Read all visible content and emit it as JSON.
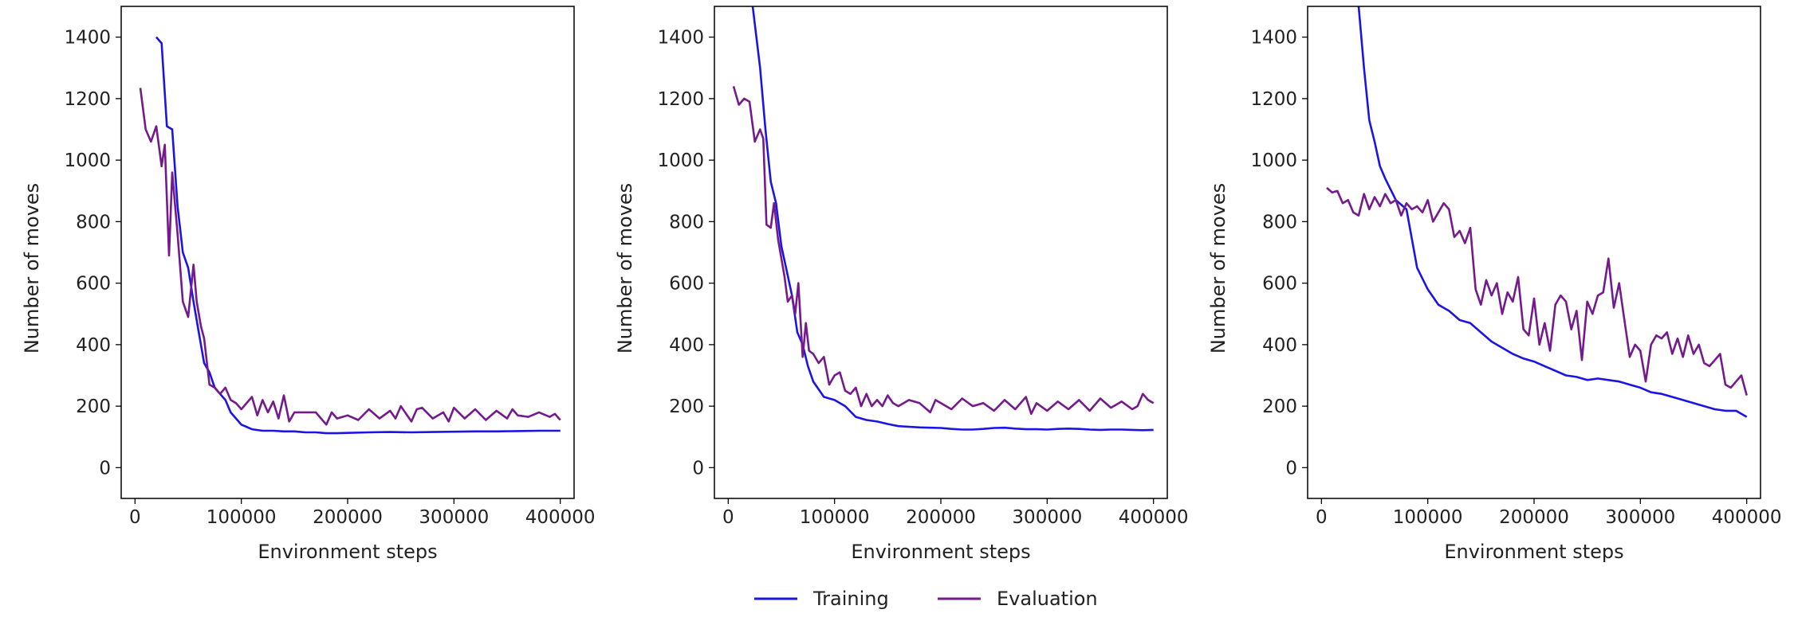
{
  "colors": {
    "training": "#1a14e6",
    "evaluation": "#741a8c"
  },
  "legend": {
    "placement": "bottom-center",
    "items": [
      {
        "label": "Training",
        "color": "#1a14e6"
      },
      {
        "label": "Evaluation",
        "color": "#741a8c"
      }
    ]
  },
  "chart_data": [
    {
      "type": "line",
      "xlabel": "Environment steps",
      "ylabel": "Number of moves",
      "xlim": [
        -13000,
        413000
      ],
      "ylim": [
        -100,
        1500
      ],
      "xticks": [
        0,
        100000,
        200000,
        300000,
        400000
      ],
      "yticks": [
        0,
        200,
        400,
        600,
        800,
        1000,
        1200,
        1400
      ],
      "grid": false,
      "series": [
        {
          "name": "Training",
          "x": [
            20000,
            25000,
            30000,
            35000,
            40000,
            45000,
            50000,
            55000,
            60000,
            65000,
            70000,
            75000,
            80000,
            85000,
            90000,
            95000,
            100000,
            110000,
            120000,
            130000,
            140000,
            150000,
            160000,
            170000,
            180000,
            190000,
            200000,
            220000,
            240000,
            260000,
            280000,
            300000,
            320000,
            340000,
            360000,
            380000,
            400000
          ],
          "y": [
            1400,
            1380,
            1110,
            1100,
            850,
            700,
            650,
            540,
            440,
            340,
            310,
            260,
            240,
            220,
            180,
            160,
            140,
            125,
            120,
            120,
            118,
            118,
            115,
            115,
            112,
            112,
            113,
            115,
            116,
            115,
            116,
            117,
            118,
            118,
            119,
            120,
            120
          ]
        },
        {
          "name": "Evaluation",
          "x": [
            5000,
            10000,
            15000,
            20000,
            25000,
            28000,
            32000,
            35000,
            40000,
            45000,
            50000,
            55000,
            58000,
            62000,
            65000,
            70000,
            75000,
            80000,
            85000,
            90000,
            95000,
            100000,
            110000,
            115000,
            120000,
            125000,
            130000,
            135000,
            140000,
            145000,
            150000,
            160000,
            170000,
            180000,
            185000,
            190000,
            200000,
            210000,
            220000,
            230000,
            240000,
            245000,
            250000,
            260000,
            265000,
            270000,
            280000,
            290000,
            295000,
            300000,
            310000,
            320000,
            330000,
            340000,
            350000,
            355000,
            360000,
            370000,
            380000,
            390000,
            395000,
            400000
          ],
          "y": [
            1235,
            1100,
            1060,
            1110,
            980,
            1050,
            690,
            960,
            760,
            540,
            490,
            660,
            540,
            460,
            420,
            270,
            260,
            240,
            260,
            220,
            210,
            190,
            230,
            170,
            220,
            180,
            215,
            160,
            235,
            150,
            180,
            180,
            180,
            140,
            180,
            160,
            170,
            155,
            190,
            160,
            185,
            160,
            200,
            150,
            190,
            195,
            160,
            180,
            150,
            195,
            160,
            190,
            155,
            185,
            160,
            190,
            170,
            165,
            180,
            165,
            175,
            155
          ]
        }
      ]
    },
    {
      "type": "line",
      "xlabel": "Environment steps",
      "ylabel": "Number of moves",
      "xlim": [
        -13000,
        413000
      ],
      "ylim": [
        -100,
        1500
      ],
      "xticks": [
        0,
        100000,
        200000,
        300000,
        400000
      ],
      "yticks": [
        0,
        200,
        400,
        600,
        800,
        1000,
        1200,
        1400
      ],
      "grid": false,
      "series": [
        {
          "name": "Training",
          "x": [
            23000,
            30000,
            35000,
            40000,
            45000,
            50000,
            55000,
            60000,
            65000,
            70000,
            75000,
            80000,
            90000,
            100000,
            110000,
            120000,
            130000,
            140000,
            150000,
            160000,
            170000,
            180000,
            190000,
            200000,
            210000,
            220000,
            230000,
            240000,
            250000,
            260000,
            270000,
            280000,
            290000,
            300000,
            310000,
            320000,
            330000,
            340000,
            350000,
            360000,
            370000,
            380000,
            390000,
            400000
          ],
          "y": [
            1500,
            1300,
            1100,
            930,
            860,
            720,
            640,
            560,
            440,
            400,
            330,
            280,
            230,
            220,
            200,
            165,
            155,
            150,
            142,
            135,
            133,
            131,
            130,
            129,
            126,
            124,
            124,
            126,
            129,
            130,
            127,
            125,
            125,
            124,
            126,
            127,
            126,
            124,
            123,
            124,
            124,
            123,
            122,
            123
          ]
        },
        {
          "name": "Evaluation",
          "x": [
            5000,
            10000,
            15000,
            20000,
            25000,
            30000,
            33000,
            36000,
            40000,
            43000,
            47000,
            50000,
            53000,
            56000,
            60000,
            63000,
            66000,
            70000,
            73000,
            76000,
            80000,
            85000,
            90000,
            95000,
            100000,
            105000,
            110000,
            115000,
            120000,
            125000,
            130000,
            135000,
            140000,
            145000,
            150000,
            155000,
            160000,
            170000,
            180000,
            190000,
            195000,
            200000,
            210000,
            220000,
            230000,
            240000,
            250000,
            260000,
            270000,
            280000,
            285000,
            290000,
            300000,
            310000,
            320000,
            330000,
            340000,
            350000,
            360000,
            370000,
            380000,
            385000,
            390000,
            395000,
            400000
          ],
          "y": [
            1240,
            1180,
            1200,
            1190,
            1060,
            1100,
            1070,
            790,
            780,
            860,
            740,
            680,
            620,
            540,
            560,
            500,
            600,
            360,
            470,
            380,
            370,
            340,
            360,
            270,
            300,
            310,
            250,
            240,
            260,
            200,
            240,
            200,
            220,
            200,
            235,
            210,
            200,
            220,
            210,
            180,
            220,
            210,
            190,
            225,
            200,
            210,
            185,
            220,
            190,
            230,
            175,
            210,
            185,
            215,
            190,
            220,
            185,
            225,
            195,
            215,
            190,
            200,
            240,
            220,
            210
          ]
        }
      ]
    },
    {
      "type": "line",
      "xlabel": "Environment steps",
      "ylabel": "Number of moves",
      "xlim": [
        -13000,
        413000
      ],
      "ylim": [
        -100,
        1500
      ],
      "xticks": [
        0,
        100000,
        200000,
        300000,
        400000
      ],
      "yticks": [
        0,
        200,
        400,
        600,
        800,
        1000,
        1200,
        1400
      ],
      "grid": false,
      "series": [
        {
          "name": "Training",
          "x": [
            35000,
            40000,
            45000,
            50000,
            55000,
            60000,
            70000,
            80000,
            90000,
            100000,
            110000,
            120000,
            130000,
            140000,
            150000,
            160000,
            170000,
            180000,
            190000,
            200000,
            210000,
            220000,
            230000,
            240000,
            250000,
            260000,
            270000,
            280000,
            290000,
            300000,
            310000,
            320000,
            330000,
            340000,
            350000,
            360000,
            370000,
            380000,
            390000,
            400000
          ],
          "y": [
            1500,
            1300,
            1130,
            1060,
            980,
            940,
            870,
            840,
            650,
            580,
            530,
            510,
            480,
            470,
            440,
            410,
            390,
            370,
            355,
            345,
            330,
            315,
            300,
            295,
            285,
            290,
            285,
            280,
            270,
            260,
            245,
            240,
            230,
            220,
            210,
            200,
            190,
            185,
            185,
            165
          ]
        },
        {
          "name": "Evaluation",
          "x": [
            5000,
            10000,
            15000,
            20000,
            25000,
            30000,
            35000,
            40000,
            45000,
            50000,
            55000,
            60000,
            65000,
            70000,
            75000,
            80000,
            85000,
            90000,
            95000,
            100000,
            105000,
            110000,
            115000,
            120000,
            125000,
            130000,
            135000,
            140000,
            145000,
            150000,
            155000,
            160000,
            165000,
            170000,
            175000,
            180000,
            185000,
            190000,
            195000,
            200000,
            205000,
            210000,
            215000,
            220000,
            225000,
            230000,
            235000,
            240000,
            245000,
            250000,
            255000,
            260000,
            265000,
            270000,
            275000,
            280000,
            285000,
            290000,
            295000,
            300000,
            305000,
            310000,
            315000,
            320000,
            325000,
            330000,
            335000,
            340000,
            345000,
            350000,
            355000,
            360000,
            365000,
            370000,
            375000,
            380000,
            385000,
            390000,
            395000,
            400000
          ],
          "y": [
            910,
            895,
            900,
            860,
            870,
            830,
            820,
            890,
            840,
            880,
            850,
            890,
            860,
            870,
            820,
            860,
            840,
            850,
            830,
            870,
            800,
            830,
            860,
            840,
            750,
            770,
            730,
            780,
            580,
            530,
            610,
            560,
            600,
            500,
            570,
            540,
            620,
            450,
            430,
            550,
            400,
            470,
            380,
            530,
            560,
            540,
            450,
            510,
            350,
            540,
            500,
            560,
            570,
            680,
            520,
            600,
            480,
            360,
            400,
            380,
            280,
            400,
            430,
            420,
            440,
            370,
            420,
            360,
            430,
            370,
            400,
            340,
            330,
            350,
            370,
            270,
            260,
            280,
            300,
            235
          ]
        }
      ]
    }
  ]
}
